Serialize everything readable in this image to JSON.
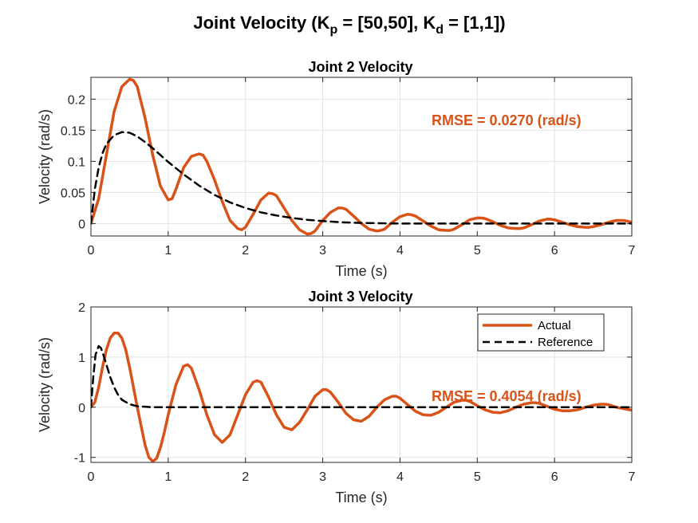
{
  "figure": {
    "title_prefix": "Joint Velocity (K",
    "title_sub1": "p",
    "title_mid": " = [50,50], K",
    "title_sub2": "d",
    "title_suffix": " = [1,1])"
  },
  "colors": {
    "actual": "#D95319",
    "reference": "#000000",
    "grid": "#e3e3e3",
    "axis": "#262626"
  },
  "chart_data": [
    {
      "type": "line",
      "title": "Joint 2 Velocity",
      "xlabel": "Time (s)",
      "ylabel": "Velocity  (rad/s)",
      "xlim": [
        0,
        7
      ],
      "ylim": [
        -0.02,
        0.235
      ],
      "xticks": [
        0,
        1,
        2,
        3,
        4,
        5,
        6,
        7
      ],
      "yticks": [
        0,
        0.05,
        0.1,
        0.15,
        0.2
      ],
      "ytick_labels": [
        "0",
        "0.05",
        "0.1",
        "0.15",
        "0.2"
      ],
      "grid": true,
      "annotation": "RMSE = 0.0270 (rad/s)",
      "series": [
        {
          "name": "Actual",
          "style": "solid",
          "x": [
            0,
            0.1,
            0.2,
            0.3,
            0.4,
            0.5,
            0.55,
            0.6,
            0.7,
            0.8,
            0.9,
            1.0,
            1.05,
            1.1,
            1.2,
            1.3,
            1.4,
            1.45,
            1.5,
            1.6,
            1.7,
            1.8,
            1.9,
            1.95,
            2.0,
            2.1,
            2.2,
            2.3,
            2.35,
            2.4,
            2.5,
            2.6,
            2.7,
            2.8,
            2.85,
            2.9,
            3.0,
            3.1,
            3.2,
            3.25,
            3.3,
            3.4,
            3.5,
            3.6,
            3.7,
            3.75,
            3.8,
            3.9,
            4.0,
            4.1,
            4.15,
            4.2,
            4.3,
            4.4,
            4.5,
            4.6,
            4.65,
            4.7,
            4.8,
            4.9,
            5.0,
            5.05,
            5.1,
            5.2,
            5.3,
            5.4,
            5.5,
            5.55,
            5.6,
            5.7,
            5.8,
            5.9,
            5.95,
            6.0,
            6.1,
            6.2,
            6.3,
            6.4,
            6.45,
            6.5,
            6.6,
            6.7,
            6.8,
            6.85,
            6.9,
            7.0
          ],
          "y": [
            0,
            0.04,
            0.11,
            0.18,
            0.22,
            0.232,
            0.23,
            0.22,
            0.17,
            0.11,
            0.06,
            0.038,
            0.04,
            0.055,
            0.09,
            0.108,
            0.112,
            0.11,
            0.1,
            0.07,
            0.035,
            0.005,
            -0.008,
            -0.01,
            -0.006,
            0.015,
            0.038,
            0.049,
            0.048,
            0.045,
            0.025,
            0.005,
            -0.01,
            -0.017,
            -0.016,
            -0.012,
            0.005,
            0.018,
            0.025,
            0.025,
            0.023,
            0.012,
            0.0,
            -0.009,
            -0.012,
            -0.011,
            -0.009,
            0.002,
            0.011,
            0.015,
            0.014,
            0.012,
            0.004,
            -0.004,
            -0.01,
            -0.011,
            -0.011,
            -0.009,
            -0.002,
            0.006,
            0.009,
            0.009,
            0.008,
            0.003,
            -0.003,
            -0.007,
            -0.008,
            -0.008,
            -0.007,
            -0.002,
            0.004,
            0.007,
            0.007,
            0.006,
            0.002,
            -0.002,
            -0.005,
            -0.006,
            -0.006,
            -0.005,
            -0.002,
            0.002,
            0.005,
            0.005,
            0.005,
            0.002
          ]
        },
        {
          "name": "Reference",
          "style": "dashed",
          "x": [
            0,
            0.05,
            0.1,
            0.15,
            0.2,
            0.3,
            0.4,
            0.5,
            0.6,
            0.7,
            0.8,
            0.9,
            1.0,
            1.2,
            1.4,
            1.6,
            1.8,
            2.0,
            2.2,
            2.4,
            2.6,
            2.8,
            3.0,
            3.25,
            3.5,
            4.0,
            4.5,
            5.0,
            5.5,
            6.0,
            6.5,
            7.0
          ],
          "y": [
            0,
            0.055,
            0.09,
            0.113,
            0.128,
            0.142,
            0.147,
            0.146,
            0.14,
            0.131,
            0.121,
            0.11,
            0.099,
            0.079,
            0.061,
            0.046,
            0.034,
            0.025,
            0.018,
            0.013,
            0.009,
            0.006,
            0.004,
            0.002,
            0.001,
            0.0,
            0.0,
            0.0,
            0.0,
            0.0,
            0.0,
            0.0
          ]
        }
      ]
    },
    {
      "type": "line",
      "title": "Joint 3 Velocity",
      "xlabel": "Time (s)",
      "ylabel": "Velocity  (rad/s)",
      "xlim": [
        0,
        7
      ],
      "ylim": [
        -1.1,
        2.0
      ],
      "xticks": [
        0,
        1,
        2,
        3,
        4,
        5,
        6,
        7
      ],
      "yticks": [
        -1,
        0,
        1,
        2
      ],
      "ytick_labels": [
        "-1",
        "0",
        "1",
        "2"
      ],
      "grid": true,
      "legend_position": "top-right",
      "annotation": "RMSE = 0.4054 (rad/s)",
      "series": [
        {
          "name": "Actual",
          "style": "solid",
          "x": [
            0,
            0.05,
            0.1,
            0.15,
            0.2,
            0.25,
            0.3,
            0.35,
            0.4,
            0.45,
            0.5,
            0.6,
            0.7,
            0.75,
            0.8,
            0.85,
            0.9,
            0.95,
            1.0,
            1.1,
            1.2,
            1.25,
            1.3,
            1.4,
            1.5,
            1.6,
            1.7,
            1.8,
            1.9,
            2.0,
            2.1,
            2.15,
            2.2,
            2.3,
            2.4,
            2.5,
            2.6,
            2.7,
            2.8,
            2.9,
            3.0,
            3.05,
            3.1,
            3.2,
            3.3,
            3.4,
            3.5,
            3.6,
            3.7,
            3.8,
            3.9,
            3.95,
            4.0,
            4.1,
            4.2,
            4.3,
            4.4,
            4.5,
            4.6,
            4.7,
            4.8,
            4.85,
            4.9,
            5.0,
            5.1,
            5.2,
            5.3,
            5.4,
            5.5,
            5.6,
            5.7,
            5.75,
            5.8,
            5.9,
            6.0,
            6.1,
            6.2,
            6.3,
            6.4,
            6.5,
            6.6,
            6.65,
            6.7,
            6.8,
            6.9,
            7.0
          ],
          "y": [
            0,
            0.1,
            0.4,
            0.8,
            1.15,
            1.38,
            1.48,
            1.48,
            1.38,
            1.15,
            0.8,
            0.0,
            -0.75,
            -1.0,
            -1.08,
            -1.02,
            -0.8,
            -0.5,
            -0.15,
            0.45,
            0.82,
            0.85,
            0.78,
            0.35,
            -0.15,
            -0.55,
            -0.7,
            -0.55,
            -0.15,
            0.25,
            0.5,
            0.53,
            0.5,
            0.2,
            -0.15,
            -0.4,
            -0.45,
            -0.3,
            -0.05,
            0.22,
            0.35,
            0.35,
            0.3,
            0.1,
            -0.12,
            -0.25,
            -0.28,
            -0.18,
            0.0,
            0.15,
            0.22,
            0.22,
            0.18,
            0.05,
            -0.08,
            -0.15,
            -0.16,
            -0.1,
            0.0,
            0.1,
            0.14,
            0.14,
            0.12,
            0.03,
            -0.05,
            -0.1,
            -0.11,
            -0.07,
            0.0,
            0.06,
            0.09,
            0.09,
            0.08,
            0.02,
            -0.04,
            -0.07,
            -0.07,
            -0.05,
            0.0,
            0.04,
            0.06,
            0.06,
            0.05,
            0.0,
            -0.03,
            -0.06
          ]
        },
        {
          "name": "Reference",
          "style": "dashed",
          "x": [
            0,
            0.03,
            0.06,
            0.1,
            0.13,
            0.16,
            0.2,
            0.25,
            0.3,
            0.35,
            0.4,
            0.5,
            0.6,
            0.7,
            0.8,
            1.0,
            1.5,
            2.0,
            3.0,
            4.0,
            5.0,
            6.0,
            7.0
          ],
          "y": [
            0,
            0.6,
            1.05,
            1.22,
            1.18,
            1.05,
            0.85,
            0.6,
            0.4,
            0.25,
            0.15,
            0.06,
            0.02,
            0.01,
            0.0,
            0.0,
            0.0,
            0.0,
            0.0,
            0.0,
            0.0,
            0.0,
            0.0
          ]
        }
      ]
    }
  ]
}
